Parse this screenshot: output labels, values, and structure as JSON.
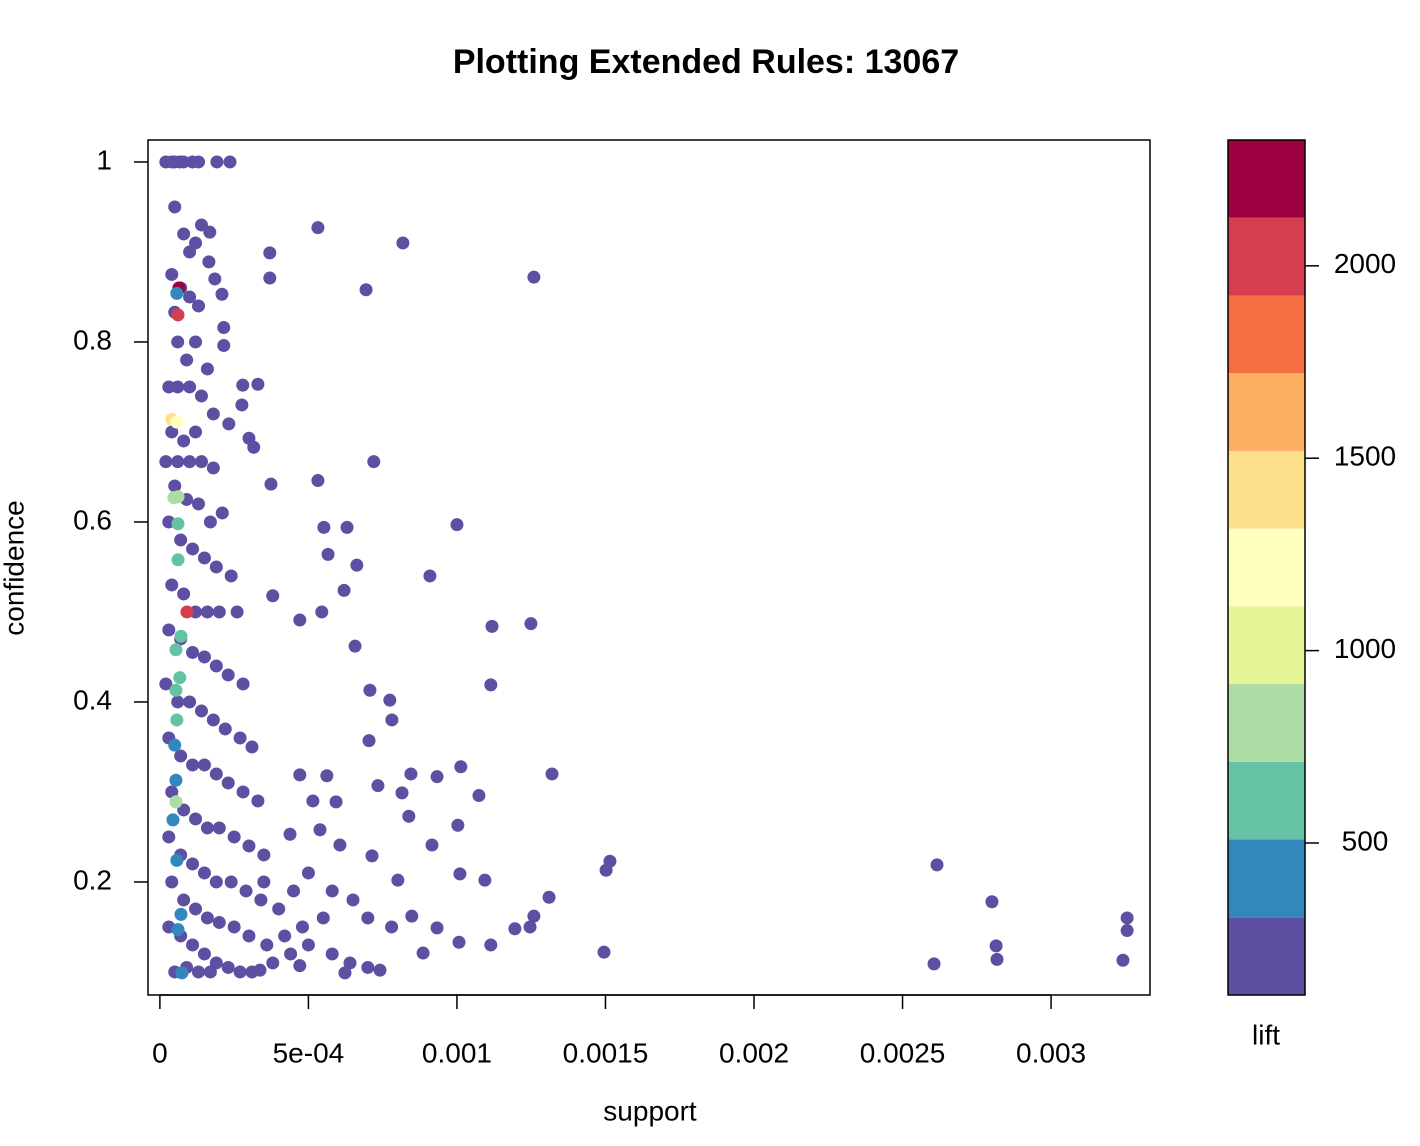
{
  "chart_data": {
    "type": "scatter",
    "title": "Plotting Extended Rules:  13067",
    "x_label": "support",
    "y_label": "confidence",
    "xlim": [
      -4e-05,
      0.003333
    ],
    "ylim": [
      0.0744,
      1.0244
    ],
    "xticks": [
      0,
      {
        "value": 0.0005,
        "label": "5e-04"
      },
      0.001,
      0.0015,
      0.002,
      0.0025,
      0.003
    ],
    "yticks": [
      0.2,
      0.4,
      0.6,
      0.8,
      1
    ],
    "x": [
      0.000236,
      0.000192,
      0.000532,
      0.000818,
      0.001259,
      0.000694,
      0.00037,
      0.00037,
      0.00072,
      0.001,
      0.000909,
      0.001118,
      0.001249,
      0.001114,
      0.00132,
      0.001013,
      0.001074,
      0.001515,
      0.001502,
      0.002616,
      0.002801,
      0.003256,
      0.003256,
      0.002815,
      0.002818,
      0.002606,
      0.003242,
      0.001495,
      0.001114,
      0.001007,
      0.001195,
      0.001246,
      0.00131,
      0.001259,
      0.001094,
      0.00101,
      0.000845,
      0.000933,
      0.000815,
      0.001003,
      0.000916,
      0.000801,
      0.000774,
      0.000781,
      0.000657,
      0.000545,
      0.000532,
      0.000552,
      0.00063,
      0.000663,
      0.00062,
      0.000566,
      0.000471,
      0.00038,
      0.000374,
      0.000316,
      0.0003,
      0.000279,
      0.00033,
      0.000276,
      0.000232,
      0.000215,
      0.000185,
      0.000215,
      0.000209,
      0.000165,
      0.000168,
      0.000707,
      0.000704,
      0.000734,
      0.000838,
      0.000562,
      0.000593,
      0.000471,
      0.000515,
      0.000438,
      0.000539,
      0.000606,
      0.000714,
      0.000848,
      0.000933,
      0.000886,
      0.000741,
      0.000623,
      0.000471,
      0.000337,
      2e-05,
      4e-05,
      8e-05,
      0.00011,
      0.00013,
      5e-05,
      8e-05,
      0.0001,
      0.00012,
      0.00014,
      4e-05,
      7e-05,
      0.0001,
      0.00013,
      5e-05,
      6e-05,
      9e-05,
      0.00012,
      0.00016,
      3e-05,
      6e-05,
      0.0001,
      0.00014,
      0.00018,
      4e-05,
      8e-05,
      0.00012,
      2e-05,
      6e-05,
      0.0001,
      0.00014,
      0.00018,
      5e-05,
      9e-05,
      0.00013,
      0.00017,
      0.00021,
      3e-05,
      7e-05,
      0.00011,
      0.00015,
      0.00019,
      0.00024,
      4e-05,
      8e-05,
      0.00012,
      0.00016,
      0.0002,
      0.00026,
      3e-05,
      7e-05,
      0.00011,
      0.00015,
      0.00019,
      0.00023,
      0.00028,
      2e-05,
      6e-05,
      0.0001,
      0.00014,
      0.00018,
      0.00022,
      0.00027,
      0.00031,
      3e-05,
      7e-05,
      0.00011,
      0.00015,
      0.00019,
      0.00023,
      0.00028,
      0.00033,
      4e-05,
      8e-05,
      0.00012,
      0.00016,
      0.0002,
      0.00025,
      0.0003,
      0.00035,
      3e-05,
      7e-05,
      0.00011,
      0.00015,
      0.00019,
      0.00024,
      0.00029,
      0.00034,
      0.0004,
      4e-05,
      8e-05,
      0.00012,
      0.00016,
      0.0002,
      0.00025,
      0.0003,
      0.00036,
      0.00042,
      0.00048,
      0.00055,
      3e-05,
      7e-05,
      0.00011,
      0.00015,
      0.00019,
      0.00023,
      0.00027,
      0.00031,
      0.00038,
      0.00044,
      0.0005,
      0.00058,
      0.00064,
      0.0007,
      5e-05,
      9e-05,
      0.00013,
      0.00017,
      0.00035,
      0.00045,
      0.0005,
      0.00058,
      0.00065,
      0.0007,
      0.00078,
      5e-05,
      6.7e-05,
      6.4e-05,
      5.7e-05,
      6.1e-05,
      9.1e-05,
      4e-05,
      5.7e-05,
      5.4e-05,
      4.7e-05,
      6.1e-05,
      6.1e-05,
      5.4e-05,
      7.1e-05,
      6.7e-05,
      6.1e-05,
      5.4e-05,
      5.7e-05,
      5e-05,
      5.4e-05,
      4.4e-05,
      5.7e-05,
      7.1e-05,
      6.1e-05,
      7.4e-05
    ],
    "y": [
      1.0,
      1.0,
      0.927,
      0.91,
      0.872,
      0.858,
      0.899,
      0.871,
      0.667,
      0.597,
      0.54,
      0.484,
      0.487,
      0.419,
      0.32,
      0.328,
      0.296,
      0.223,
      0.213,
      0.219,
      0.178,
      0.16,
      0.146,
      0.129,
      0.114,
      0.109,
      0.113,
      0.122,
      0.13,
      0.133,
      0.148,
      0.15,
      0.183,
      0.162,
      0.202,
      0.209,
      0.32,
      0.317,
      0.299,
      0.263,
      0.241,
      0.202,
      0.402,
      0.38,
      0.462,
      0.5,
      0.646,
      0.594,
      0.594,
      0.552,
      0.524,
      0.564,
      0.491,
      0.518,
      0.642,
      0.683,
      0.693,
      0.752,
      0.753,
      0.73,
      0.709,
      0.796,
      0.87,
      0.816,
      0.853,
      0.889,
      0.922,
      0.413,
      0.357,
      0.307,
      0.273,
      0.318,
      0.289,
      0.319,
      0.29,
      0.253,
      0.258,
      0.241,
      0.229,
      0.162,
      0.149,
      0.121,
      0.102,
      0.099,
      0.107,
      0.102,
      1.0,
      1.0,
      1.0,
      1.0,
      1.0,
      0.95,
      0.92,
      0.9,
      0.91,
      0.93,
      0.875,
      0.86,
      0.85,
      0.84,
      0.833,
      0.8,
      0.78,
      0.8,
      0.77,
      0.75,
      0.75,
      0.75,
      0.74,
      0.72,
      0.7,
      0.69,
      0.7,
      0.667,
      0.667,
      0.667,
      0.667,
      0.66,
      0.64,
      0.625,
      0.62,
      0.6,
      0.61,
      0.6,
      0.58,
      0.57,
      0.56,
      0.55,
      0.54,
      0.53,
      0.52,
      0.5,
      0.5,
      0.5,
      0.5,
      0.48,
      0.47,
      0.455,
      0.45,
      0.44,
      0.43,
      0.42,
      0.42,
      0.4,
      0.4,
      0.39,
      0.38,
      0.37,
      0.36,
      0.35,
      0.36,
      0.34,
      0.33,
      0.33,
      0.32,
      0.31,
      0.3,
      0.29,
      0.3,
      0.28,
      0.27,
      0.26,
      0.26,
      0.25,
      0.24,
      0.23,
      0.25,
      0.23,
      0.22,
      0.21,
      0.2,
      0.2,
      0.19,
      0.18,
      0.17,
      0.2,
      0.18,
      0.17,
      0.16,
      0.155,
      0.15,
      0.14,
      0.13,
      0.14,
      0.15,
      0.16,
      0.15,
      0.14,
      0.13,
      0.12,
      0.11,
      0.105,
      0.1,
      0.1,
      0.11,
      0.12,
      0.13,
      0.12,
      0.11,
      0.105,
      0.1,
      0.105,
      0.1,
      0.1,
      0.2,
      0.19,
      0.21,
      0.19,
      0.18,
      0.16,
      0.15,
      1.0,
      1.0,
      0.86,
      0.854,
      0.83,
      0.5,
      0.714,
      0.711,
      0.289,
      0.627,
      0.628,
      0.558,
      0.458,
      0.473,
      0.427,
      0.598,
      0.413,
      0.38,
      0.352,
      0.313,
      0.269,
      0.224,
      0.164,
      0.147,
      0.099
    ],
    "lift": [
      150,
      150,
      150,
      150,
      150,
      150,
      150,
      150,
      150,
      150,
      150,
      150,
      150,
      150,
      150,
      150,
      150,
      150,
      150,
      150,
      150,
      150,
      150,
      150,
      150,
      150,
      150,
      150,
      150,
      150,
      150,
      150,
      150,
      150,
      150,
      150,
      150,
      150,
      150,
      150,
      150,
      150,
      150,
      150,
      150,
      150,
      150,
      150,
      150,
      150,
      150,
      150,
      150,
      150,
      150,
      150,
      150,
      150,
      150,
      150,
      150,
      150,
      150,
      150,
      150,
      150,
      150,
      150,
      150,
      150,
      150,
      150,
      150,
      150,
      150,
      150,
      150,
      150,
      150,
      150,
      150,
      150,
      150,
      150,
      150,
      150,
      150,
      150,
      150,
      150,
      150,
      150,
      150,
      150,
      150,
      150,
      150,
      150,
      150,
      150,
      150,
      150,
      150,
      150,
      150,
      150,
      150,
      150,
      150,
      150,
      150,
      150,
      150,
      150,
      150,
      150,
      150,
      150,
      150,
      150,
      150,
      150,
      150,
      150,
      150,
      150,
      150,
      150,
      150,
      150,
      150,
      150,
      150,
      150,
      150,
      150,
      150,
      150,
      150,
      150,
      150,
      150,
      150,
      150,
      150,
      150,
      150,
      150,
      150,
      150,
      150,
      150,
      150,
      150,
      150,
      150,
      150,
      150,
      150,
      150,
      150,
      150,
      150,
      150,
      150,
      150,
      150,
      150,
      150,
      150,
      150,
      150,
      150,
      150,
      150,
      150,
      150,
      150,
      150,
      150,
      150,
      150,
      150,
      150,
      150,
      150,
      150,
      150,
      150,
      150,
      150,
      150,
      150,
      150,
      150,
      150,
      150,
      150,
      150,
      150,
      150,
      150,
      150,
      150,
      150,
      150,
      150,
      150,
      150,
      150,
      150,
      150,
      150,
      2250,
      400,
      2050,
      2050,
      1400,
      1200,
      800,
      800,
      800,
      600,
      600,
      600,
      600,
      600,
      600,
      600,
      400,
      400,
      400,
      400,
      400,
      400,
      400,
      400,
      400
    ],
    "colorbar": {
      "label": "lift",
      "lim": [
        105,
        2327
      ],
      "ticks": [
        500,
        1000,
        1500,
        2000
      ],
      "breaks": [
        105,
        307,
        509,
        711,
        913,
        1115,
        1317,
        1519,
        1721,
        1923,
        2125,
        2327
      ],
      "colors": [
        "#5E4FA2",
        "#3288BD",
        "#66C2A5",
        "#ABDDA4",
        "#E6F598",
        "#FFFFBF",
        "#FEE08B",
        "#FDAE61",
        "#F46D43",
        "#D53E4F",
        "#9E0142"
      ]
    }
  }
}
